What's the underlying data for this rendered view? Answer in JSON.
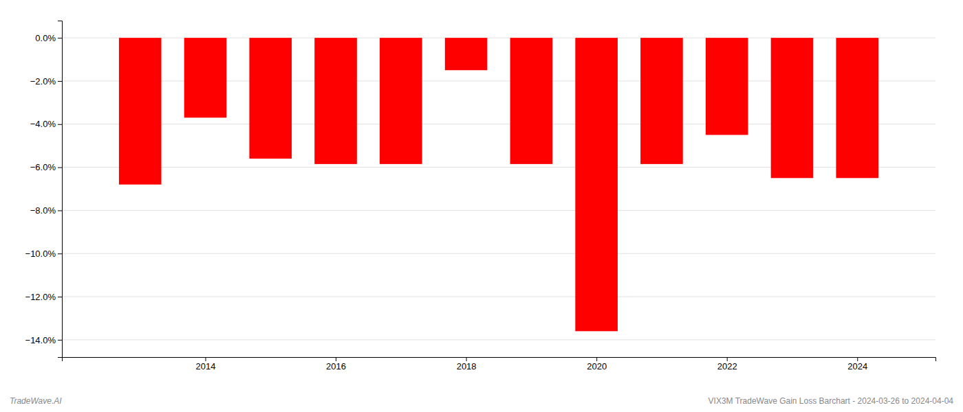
{
  "chart_data": {
    "type": "bar",
    "x": [
      2013,
      2014,
      2015,
      2016,
      2017,
      2018,
      2019,
      2020,
      2021,
      2022,
      2023,
      2024
    ],
    "values": [
      -6.8,
      -3.7,
      -5.6,
      -5.85,
      -5.85,
      -1.5,
      -5.85,
      -13.6,
      -5.85,
      -4.5,
      -6.5,
      -6.5
    ],
    "color": "#ff0000",
    "xlim": [
      2011.8,
      2025.2
    ],
    "xticks": [
      2014,
      2016,
      2018,
      2020,
      2022,
      2024
    ],
    "ylim": [
      -14.8,
      0.8
    ],
    "yticks": [
      {
        "value": 0.0,
        "label": "0.0%"
      },
      {
        "value": -2.0,
        "label": "−2.0%"
      },
      {
        "value": -4.0,
        "label": "−4.0%"
      },
      {
        "value": -6.0,
        "label": "−6.0%"
      },
      {
        "value": -8.0,
        "label": "−8.0%"
      },
      {
        "value": -10.0,
        "label": "−10.0%"
      },
      {
        "value": -12.0,
        "label": "−12.0%"
      },
      {
        "value": -14.0,
        "label": "−14.0%"
      }
    ],
    "grid": true,
    "annotations": [
      "TradeWave.AI",
      "VIX3M TradeWave Gain Loss Barchart - 2024-03-26 to 2024-04-04"
    ]
  }
}
